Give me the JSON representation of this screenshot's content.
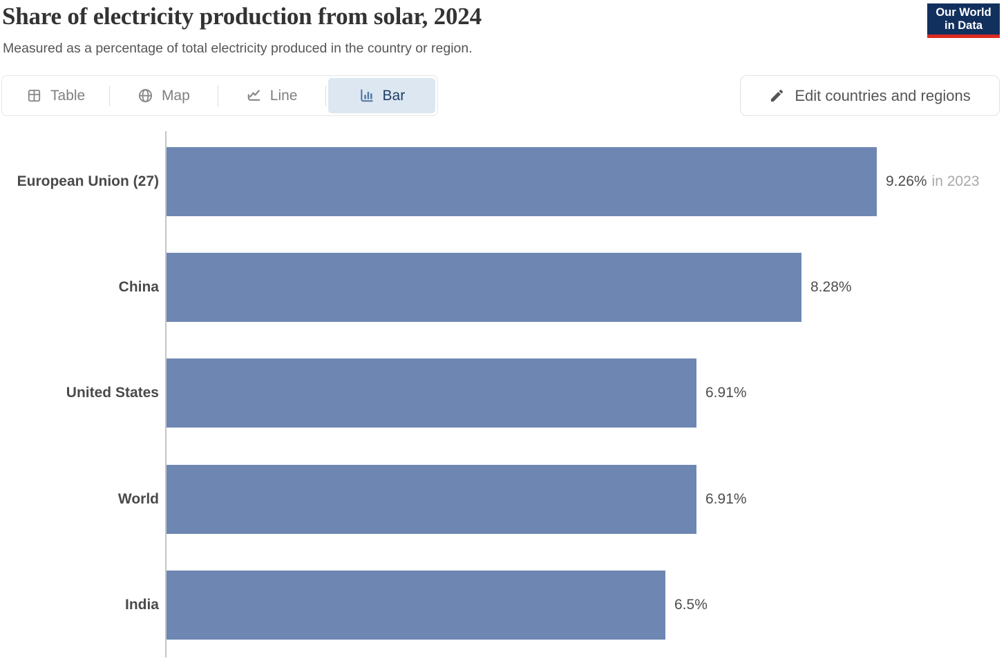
{
  "header": {
    "title": "Share of electricity production from solar, 2024",
    "subtitle": "Measured as a percentage of total electricity produced in the country or region.",
    "logo": {
      "line1": "Our World",
      "line2": "in Data"
    }
  },
  "tabs": [
    {
      "label": "Table",
      "icon": "table-icon",
      "selected": false
    },
    {
      "label": "Map",
      "icon": "globe-icon",
      "selected": false
    },
    {
      "label": "Line",
      "icon": "line-chart-icon",
      "selected": false
    },
    {
      "label": "Bar",
      "icon": "bar-chart-icon",
      "selected": true
    }
  ],
  "edit_button": {
    "label": "Edit countries and regions",
    "icon": "pencil-icon"
  },
  "chart_data": {
    "type": "bar",
    "orientation": "horizontal",
    "title": "Share of electricity production from solar, 2024",
    "categories": [
      "European Union (27)",
      "China",
      "United States",
      "World",
      "India"
    ],
    "values": [
      9.26,
      8.28,
      6.91,
      6.91,
      6.5
    ],
    "value_labels": [
      "9.26%",
      "8.28%",
      "6.91%",
      "6.91%",
      "6.5%"
    ],
    "value_suffixes": [
      "in 2023",
      "",
      "",
      "",
      ""
    ],
    "unit": "%",
    "xlim": [
      0,
      9.26
    ],
    "grid": false,
    "legend": false,
    "bar_color": "#6e87b2",
    "value_color": "#4d4d4d",
    "suffix_color": "#a8a8a8"
  }
}
